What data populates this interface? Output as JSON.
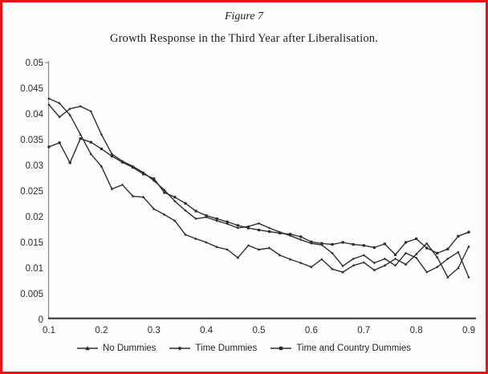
{
  "figure": {
    "label": "Figure 7",
    "title": "Growth Response in the Third Year after Liberalisation."
  },
  "colors": {
    "page_border": "#ee1111",
    "line": "#2e2e2e",
    "x_axis": "#3a3a3a",
    "y_axis": "#8e8e8e",
    "tick_text": "#2a2a2a"
  },
  "chart_data": {
    "type": "line",
    "title": "Growth Response in the Third Year after Liberalisation.",
    "xlabel": "",
    "ylabel": "",
    "grid": false,
    "legend_position": "bottom",
    "xlim": [
      0.1,
      0.9
    ],
    "ylim": [
      0,
      0.05
    ],
    "x_tick_labels": [
      "0.1",
      "0.2",
      "0.3",
      "0.4",
      "0.5",
      "0.6",
      "0.7",
      "0.8",
      "0.9"
    ],
    "x_tick_values": [
      0.1,
      0.2,
      0.3,
      0.4,
      0.5,
      0.6,
      0.7,
      0.8,
      0.9
    ],
    "y_tick_labels": [
      "0",
      "0.005",
      "0.01",
      "0.015",
      "0.02",
      "0.025",
      "0.03",
      "0.035",
      "0.04",
      "0.045",
      "0.05"
    ],
    "y_tick_values": [
      0,
      0.005,
      0.01,
      0.015,
      0.02,
      0.025,
      0.03,
      0.035,
      0.04,
      0.045,
      0.05
    ],
    "x": [
      0.1,
      0.12,
      0.14,
      0.16,
      0.18,
      0.2,
      0.22,
      0.24,
      0.26,
      0.28,
      0.3,
      0.32,
      0.34,
      0.36,
      0.38,
      0.4,
      0.42,
      0.44,
      0.46,
      0.48,
      0.5,
      0.52,
      0.54,
      0.56,
      0.58,
      0.6,
      0.62,
      0.64,
      0.66,
      0.68,
      0.7,
      0.72,
      0.74,
      0.76,
      0.78,
      0.8,
      0.82,
      0.84,
      0.86,
      0.88,
      0.9
    ],
    "series": [
      {
        "name": "No Dummies",
        "marker": "triangle",
        "values": [
          0.043,
          0.0421,
          0.0398,
          0.036,
          0.0322,
          0.0298,
          0.0254,
          0.0262,
          0.024,
          0.0238,
          0.0215,
          0.0204,
          0.0192,
          0.0165,
          0.0157,
          0.015,
          0.0141,
          0.0136,
          0.012,
          0.0144,
          0.0136,
          0.0139,
          0.0125,
          0.0117,
          0.011,
          0.0102,
          0.0117,
          0.0098,
          0.0092,
          0.0105,
          0.0111,
          0.0096,
          0.0105,
          0.0118,
          0.0107,
          0.0127,
          0.0148,
          0.0121,
          0.0082,
          0.01,
          0.0142
        ]
      },
      {
        "name": "Time Dummies",
        "marker": "diamond",
        "values": [
          0.0418,
          0.0394,
          0.041,
          0.0415,
          0.0405,
          0.036,
          0.0322,
          0.0308,
          0.0298,
          0.0286,
          0.027,
          0.0252,
          0.023,
          0.0212,
          0.0196,
          0.0199,
          0.0192,
          0.0186,
          0.0178,
          0.0181,
          0.0187,
          0.0178,
          0.017,
          0.0163,
          0.0155,
          0.0148,
          0.0145,
          0.0129,
          0.0104,
          0.0118,
          0.0125,
          0.011,
          0.0118,
          0.0105,
          0.0129,
          0.012,
          0.0092,
          0.0102,
          0.0118,
          0.0131,
          0.0082
        ]
      },
      {
        "name": "Time and Country Dummies",
        "marker": "square",
        "values": [
          0.0336,
          0.0344,
          0.0305,
          0.0352,
          0.0345,
          0.0332,
          0.0318,
          0.0306,
          0.0296,
          0.0283,
          0.0274,
          0.0247,
          0.0238,
          0.0226,
          0.0211,
          0.0202,
          0.0196,
          0.019,
          0.0183,
          0.0178,
          0.0174,
          0.0171,
          0.0168,
          0.0166,
          0.0161,
          0.0151,
          0.0148,
          0.0146,
          0.015,
          0.0146,
          0.0144,
          0.014,
          0.0147,
          0.0126,
          0.015,
          0.0157,
          0.0139,
          0.0129,
          0.0137,
          0.0162,
          0.017
        ]
      }
    ]
  }
}
